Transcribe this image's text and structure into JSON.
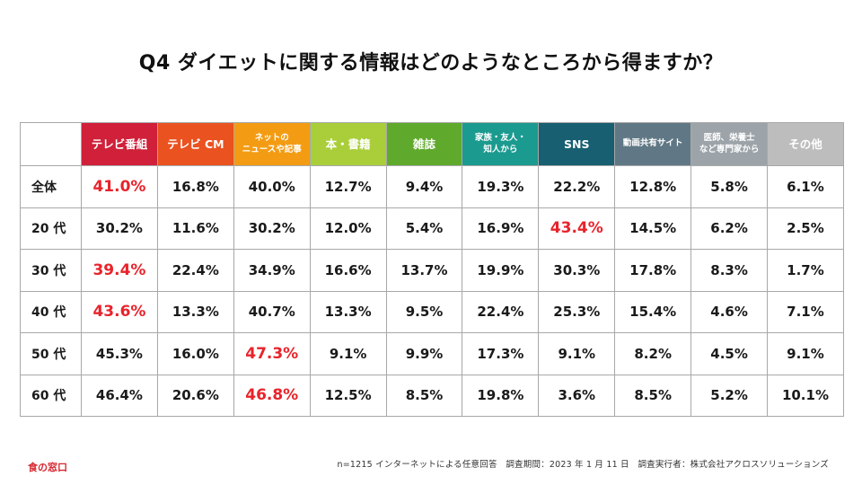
{
  "title": "Q4 ダイエットに関する情報はどのようなところから得ますか？",
  "colors": {
    "highlight": "#e8232b",
    "brand": "#d7262e"
  },
  "chart_data": {
    "type": "table",
    "title": "Q4 ダイエットに関する情報はどのようなところから得ますか？",
    "columns": [
      {
        "line1": "テレビ番組",
        "line2": "",
        "color": "#d0203a",
        "small": false
      },
      {
        "line1": "テレビ CM",
        "line2": "",
        "color": "#ea5220",
        "small": false
      },
      {
        "line1": "ネットの",
        "line2": "ニュースや記事",
        "color": "#f39c13",
        "small": true
      },
      {
        "line1": "本・書籍",
        "line2": "",
        "color": "#a9ce3a",
        "small": false
      },
      {
        "line1": "雑誌",
        "line2": "",
        "color": "#5fa92c",
        "small": false
      },
      {
        "line1": "家族・友人・",
        "line2": "知人から",
        "color": "#1b9a8f",
        "small": true
      },
      {
        "line1": "SNS",
        "line2": "",
        "color": "#175f71",
        "small": false
      },
      {
        "line1": "動画共有サイト",
        "line2": "",
        "color": "#607885",
        "small": true
      },
      {
        "line1": "医師、栄養士",
        "line2": "など専門家から",
        "color": "#9ca4a9",
        "small": true
      },
      {
        "line1": "その他",
        "line2": "",
        "color": "#bdbdbd",
        "small": false
      }
    ],
    "rows": [
      {
        "label": "全体",
        "values": [
          "41.0%",
          "16.8%",
          "40.0%",
          "12.7%",
          "9.4%",
          "19.3%",
          "22.2%",
          "12.8%",
          "5.8%",
          "6.1%"
        ],
        "highlight": [
          0
        ]
      },
      {
        "label": "20 代",
        "values": [
          "30.2%",
          "11.6%",
          "30.2%",
          "12.0%",
          "5.4%",
          "16.9%",
          "43.4%",
          "14.5%",
          "6.2%",
          "2.5%"
        ],
        "highlight": [
          6
        ]
      },
      {
        "label": "30 代",
        "values": [
          "39.4%",
          "22.4%",
          "34.9%",
          "16.6%",
          "13.7%",
          "19.9%",
          "30.3%",
          "17.8%",
          "8.3%",
          "1.7%"
        ],
        "highlight": [
          0
        ]
      },
      {
        "label": "40 代",
        "values": [
          "43.6%",
          "13.3%",
          "40.7%",
          "13.3%",
          "9.5%",
          "22.4%",
          "25.3%",
          "15.4%",
          "4.6%",
          "7.1%"
        ],
        "highlight": [
          0
        ]
      },
      {
        "label": "50 代",
        "values": [
          "45.3%",
          "16.0%",
          "47.3%",
          "9.1%",
          "9.9%",
          "17.3%",
          "9.1%",
          "8.2%",
          "4.5%",
          "9.1%"
        ],
        "highlight": [
          2
        ]
      },
      {
        "label": "60 代",
        "values": [
          "46.4%",
          "20.6%",
          "46.8%",
          "12.5%",
          "8.5%",
          "19.8%",
          "3.6%",
          "8.5%",
          "5.2%",
          "10.1%"
        ],
        "highlight": [
          2
        ]
      }
    ]
  },
  "footer": {
    "note": "n=1215 インターネットによる任意回答　調査期間：2023 年 1 月 11 日　調査実行者：株式会社アクロスソリューションズ",
    "brand": "食の窓口"
  }
}
